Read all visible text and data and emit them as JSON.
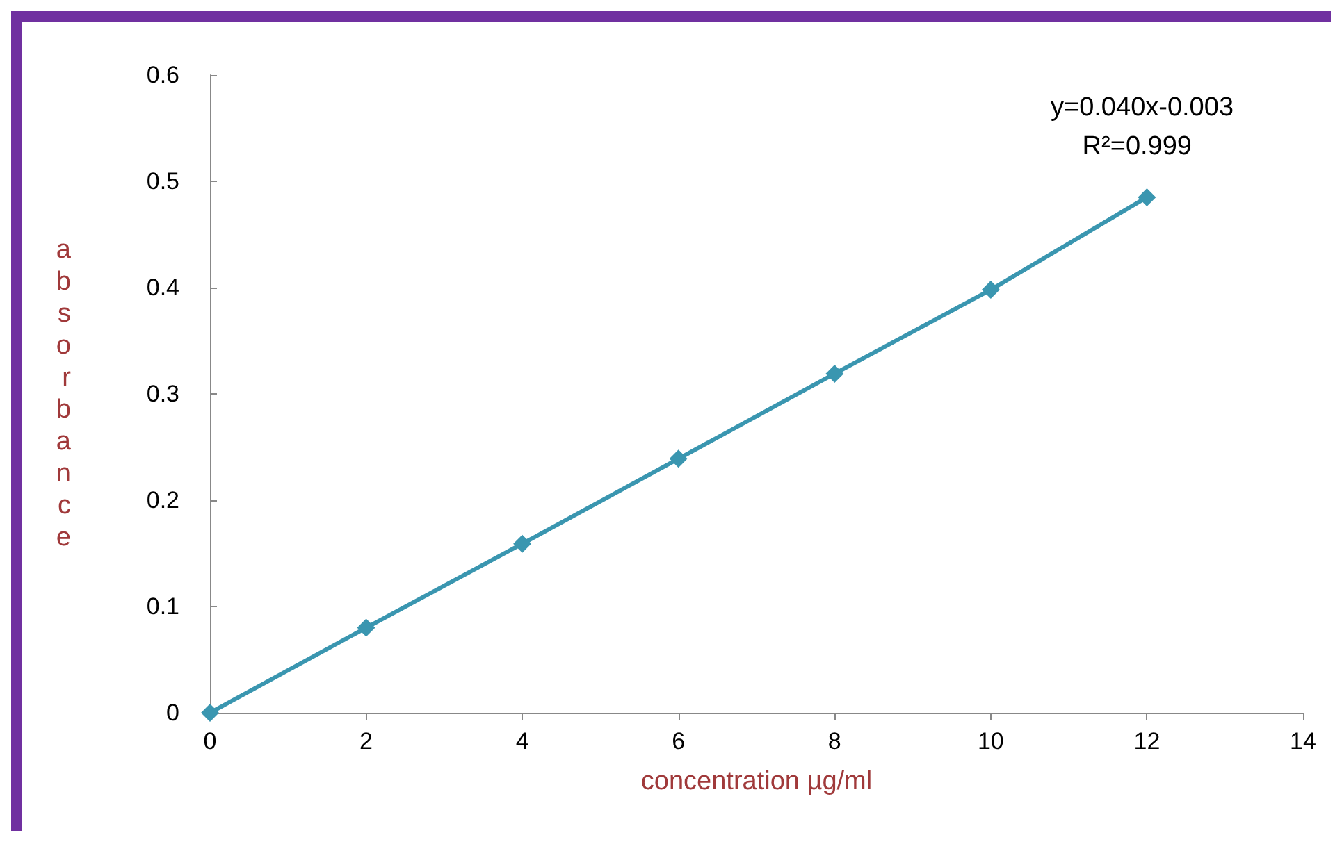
{
  "chart_data": {
    "type": "line",
    "xlabel": "concentration µg/ml",
    "ylabel": "absorbance",
    "x": [
      0,
      2,
      4,
      6,
      8,
      10,
      12
    ],
    "series": [
      {
        "color": "#3a96b0",
        "values": [
          0,
          0.08,
          0.159,
          0.239,
          0.319,
          0.398,
          0.485
        ]
      }
    ],
    "xlim": [
      0,
      14
    ],
    "xticks": [
      0,
      2,
      4,
      6,
      8,
      10,
      12,
      14
    ],
    "ylim": [
      0,
      0.6
    ],
    "yticks": [
      0,
      0.1,
      0.2,
      0.3,
      0.4,
      0.5,
      0.6
    ],
    "annotations": [
      "y=0.040x-0.003",
      "R²=0.999"
    ],
    "grid": false,
    "marker": "diamond",
    "line_style": "solid"
  }
}
